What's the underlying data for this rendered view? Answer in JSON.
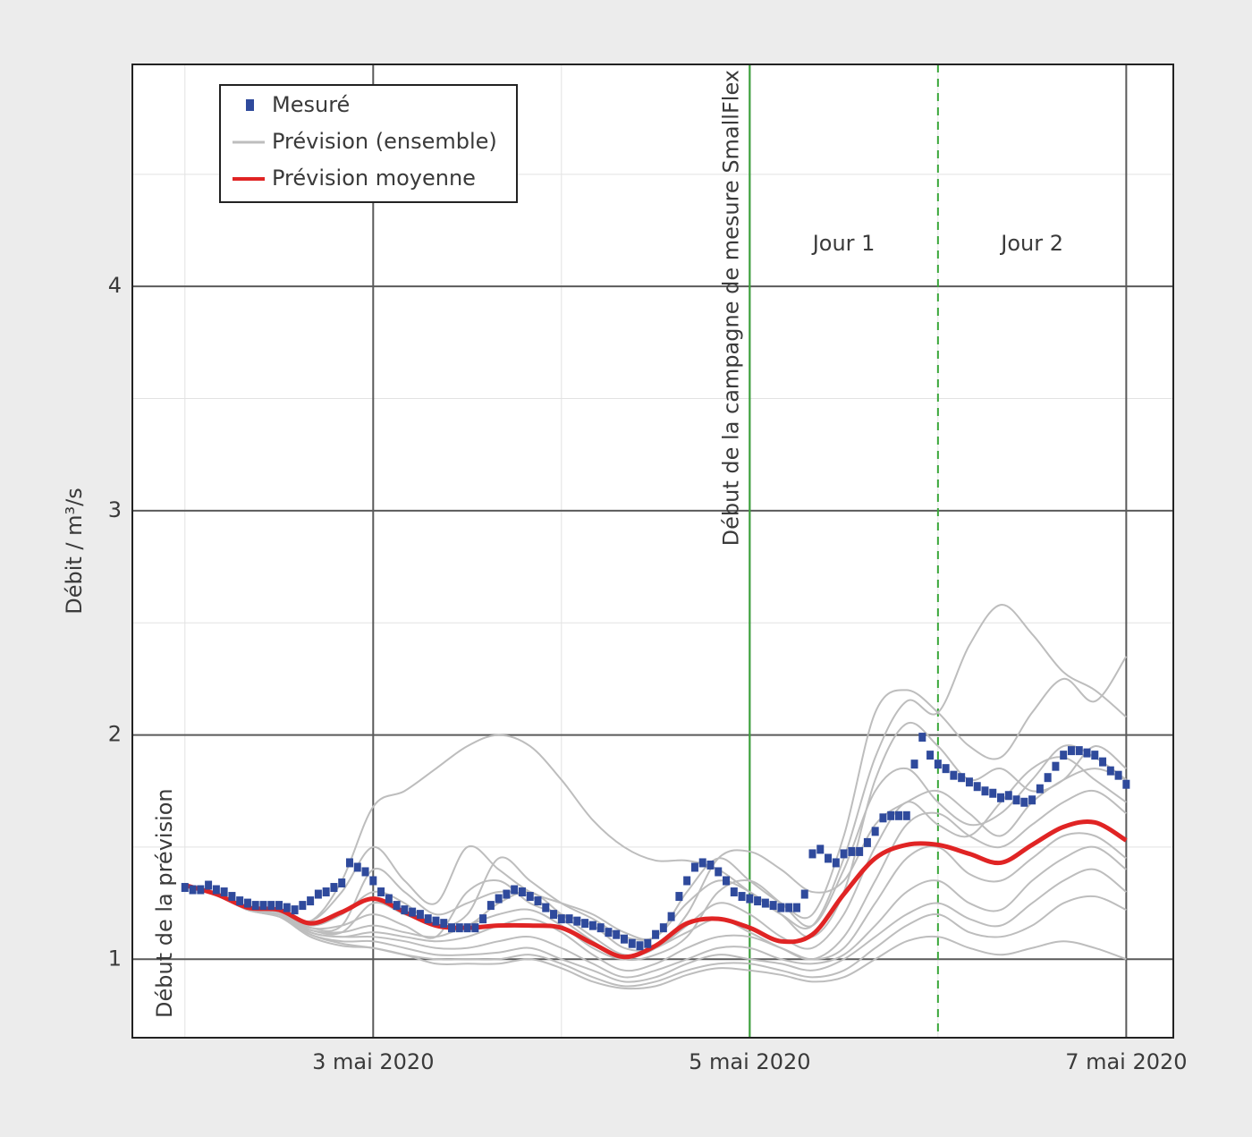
{
  "chart_data": {
    "type": "line",
    "y_label": "Débit / m³/s",
    "xlim": [
      17.3,
      150.0
    ],
    "ylim": [
      0.65,
      4.99
    ],
    "xticks": [
      {
        "value": 48,
        "label": "3 mai 2020"
      },
      {
        "value": 96,
        "label": "5 mai 2020"
      },
      {
        "value": 144,
        "label": "7 mai 2020"
      }
    ],
    "yticks": [
      1,
      2,
      3,
      4
    ],
    "minor_xticks": [
      24,
      72,
      120
    ],
    "minor_yticks": [
      1.5,
      2.5,
      3.5,
      4.5
    ],
    "grid": true,
    "legend": "upper left",
    "series": [
      {
        "name": "Mesuré",
        "color": "#2f4a9c",
        "marker": "square",
        "x": [
          24,
          25,
          26,
          27,
          28,
          29,
          30,
          31,
          32,
          33,
          34,
          35,
          36,
          37,
          38,
          39,
          40,
          41,
          42,
          43,
          44,
          45,
          46,
          47,
          48,
          49,
          50,
          51,
          52,
          53,
          54,
          55,
          56,
          57,
          58,
          59,
          60,
          61,
          62,
          63,
          64,
          65,
          66,
          67,
          68,
          69,
          70,
          71,
          72,
          73,
          74,
          75,
          76,
          77,
          78,
          79,
          80,
          81,
          82,
          83,
          84,
          85,
          86,
          87,
          88,
          89,
          90,
          91,
          92,
          93,
          94,
          95,
          96,
          97,
          98,
          99,
          100,
          101,
          102,
          103,
          104,
          105,
          106,
          107,
          108,
          109,
          110,
          111,
          112,
          113,
          114,
          115,
          116,
          117,
          118,
          119,
          120,
          121,
          122,
          123,
          124,
          125,
          126,
          127,
          128,
          129,
          130,
          131,
          132,
          133,
          134,
          135,
          136,
          137,
          138,
          139,
          140,
          141,
          142,
          143,
          144
        ],
        "values": [
          1.32,
          1.31,
          1.31,
          1.33,
          1.31,
          1.3,
          1.28,
          1.26,
          1.25,
          1.24,
          1.24,
          1.24,
          1.24,
          1.23,
          1.22,
          1.24,
          1.26,
          1.29,
          1.3,
          1.32,
          1.34,
          1.43,
          1.41,
          1.39,
          1.35,
          1.3,
          1.27,
          1.24,
          1.22,
          1.21,
          1.2,
          1.18,
          1.17,
          1.16,
          1.14,
          1.14,
          1.14,
          1.14,
          1.18,
          1.24,
          1.27,
          1.29,
          1.31,
          1.3,
          1.28,
          1.26,
          1.23,
          1.2,
          1.18,
          1.18,
          1.17,
          1.16,
          1.15,
          1.14,
          1.12,
          1.11,
          1.09,
          1.07,
          1.06,
          1.07,
          1.11,
          1.14,
          1.19,
          1.28,
          1.35,
          1.41,
          1.43,
          1.42,
          1.39,
          1.35,
          1.3,
          1.28,
          1.27,
          1.26,
          1.25,
          1.24,
          1.23,
          1.23,
          1.23,
          1.29,
          1.47,
          1.49,
          1.45,
          1.43,
          1.47,
          1.48,
          1.48,
          1.52,
          1.57,
          1.63,
          1.64,
          1.64,
          1.64,
          1.87,
          1.99,
          1.91,
          1.87,
          1.85,
          1.82,
          1.81,
          1.79,
          1.77,
          1.75,
          1.74,
          1.72,
          1.73,
          1.71,
          1.7,
          1.71,
          1.76,
          1.81,
          1.86,
          1.91,
          1.93,
          1.93,
          1.92,
          1.91,
          1.88,
          1.84,
          1.82,
          1.78
        ]
      },
      {
        "name": "Prévision (ensemble)",
        "color": "#bdbdbd",
        "x": [
          24,
          28,
          32,
          36,
          40,
          44,
          48,
          52,
          56,
          60,
          64,
          68,
          72,
          76,
          80,
          84,
          88,
          92,
          96,
          100,
          104,
          108,
          112,
          116,
          120,
          124,
          128,
          132,
          136,
          140,
          144
        ],
        "members": [
          [
            1.33,
            1.29,
            1.23,
            1.22,
            1.17,
            1.35,
            1.68,
            1.75,
            1.85,
            1.95,
            2.0,
            1.95,
            1.8,
            1.62,
            1.5,
            1.44,
            1.44,
            1.4,
            1.3,
            1.2,
            1.15,
            1.45,
            1.9,
            2.15,
            2.1,
            2.4,
            2.58,
            2.45,
            2.28,
            2.2,
            2.08
          ],
          [
            1.33,
            1.29,
            1.23,
            1.22,
            1.17,
            1.3,
            1.5,
            1.35,
            1.25,
            1.5,
            1.4,
            1.3,
            1.25,
            1.2,
            1.12,
            1.1,
            1.3,
            1.45,
            1.35,
            1.25,
            1.2,
            1.55,
            2.1,
            2.2,
            2.1,
            1.95,
            1.9,
            2.1,
            2.25,
            2.15,
            2.35
          ],
          [
            1.33,
            1.29,
            1.23,
            1.21,
            1.15,
            1.2,
            1.3,
            1.25,
            1.15,
            1.2,
            1.45,
            1.35,
            1.25,
            1.18,
            1.1,
            1.1,
            1.25,
            1.35,
            1.3,
            1.2,
            1.1,
            1.3,
            1.8,
            2.05,
            1.95,
            1.8,
            1.85,
            1.75,
            1.8,
            1.95,
            1.85
          ],
          [
            1.33,
            1.29,
            1.23,
            1.21,
            1.14,
            1.15,
            1.2,
            1.15,
            1.1,
            1.3,
            1.35,
            1.25,
            1.2,
            1.15,
            1.05,
            1.05,
            1.15,
            1.25,
            1.2,
            1.1,
            1.05,
            1.2,
            1.5,
            1.7,
            1.6,
            1.55,
            1.7,
            1.85,
            1.9,
            1.8,
            1.7
          ],
          [
            1.33,
            1.29,
            1.22,
            1.2,
            1.13,
            1.12,
            1.15,
            1.12,
            1.1,
            1.15,
            1.2,
            1.22,
            1.15,
            1.05,
            1.0,
            1.05,
            1.12,
            1.18,
            1.12,
            1.05,
            1.0,
            1.1,
            1.35,
            1.6,
            1.65,
            1.55,
            1.5,
            1.6,
            1.7,
            1.75,
            1.65
          ],
          [
            1.33,
            1.29,
            1.22,
            1.2,
            1.12,
            1.1,
            1.12,
            1.1,
            1.08,
            1.1,
            1.15,
            1.18,
            1.12,
            1.02,
            0.95,
            0.98,
            1.05,
            1.1,
            1.1,
            1.05,
            1.0,
            1.05,
            1.25,
            1.45,
            1.5,
            1.38,
            1.35,
            1.45,
            1.55,
            1.55,
            1.45
          ],
          [
            1.33,
            1.29,
            1.22,
            1.2,
            1.12,
            1.1,
            1.1,
            1.08,
            1.05,
            1.05,
            1.08,
            1.1,
            1.05,
            0.98,
            0.92,
            0.95,
            1.0,
            1.05,
            1.05,
            1.0,
            0.98,
            1.02,
            1.15,
            1.3,
            1.35,
            1.25,
            1.22,
            1.35,
            1.45,
            1.5,
            1.4
          ],
          [
            1.33,
            1.29,
            1.22,
            1.19,
            1.11,
            1.08,
            1.08,
            1.05,
            1.02,
            1.02,
            1.03,
            1.05,
            1.0,
            0.95,
            0.9,
            0.92,
            0.98,
            1.02,
            1.0,
            0.98,
            0.95,
            1.0,
            1.1,
            1.2,
            1.25,
            1.18,
            1.15,
            1.25,
            1.35,
            1.4,
            1.3
          ],
          [
            1.33,
            1.29,
            1.22,
            1.19,
            1.11,
            1.07,
            1.05,
            1.02,
            1.0,
            1.0,
            1.0,
            1.02,
            0.98,
            0.92,
            0.88,
            0.9,
            0.95,
            0.98,
            0.98,
            0.95,
            0.92,
            0.95,
            1.05,
            1.15,
            1.2,
            1.12,
            1.1,
            1.15,
            1.25,
            1.28,
            1.22
          ],
          [
            1.33,
            1.29,
            1.22,
            1.19,
            1.1,
            1.06,
            1.05,
            1.02,
            0.98,
            0.98,
            0.98,
            1.0,
            0.96,
            0.9,
            0.87,
            0.88,
            0.93,
            0.96,
            0.95,
            0.93,
            0.9,
            0.92,
            1.0,
            1.08,
            1.1,
            1.05,
            1.02,
            1.05,
            1.08,
            1.05,
            1.0
          ],
          [
            1.33,
            1.29,
            1.22,
            1.19,
            1.13,
            1.12,
            1.25,
            1.2,
            1.15,
            1.15,
            1.25,
            1.3,
            1.2,
            1.1,
            1.02,
            1.05,
            1.2,
            1.45,
            1.48,
            1.4,
            1.3,
            1.35,
            1.6,
            1.7,
            1.75,
            1.65,
            1.55,
            1.7,
            1.8,
            1.85,
            1.8
          ],
          [
            1.33,
            1.29,
            1.22,
            1.2,
            1.14,
            1.15,
            1.4,
            1.3,
            1.2,
            1.25,
            1.3,
            1.28,
            1.18,
            1.08,
            1.0,
            1.02,
            1.1,
            1.3,
            1.35,
            1.25,
            1.15,
            1.4,
            1.75,
            1.85,
            1.7,
            1.6,
            1.65,
            1.8,
            1.95,
            1.9,
            1.8
          ]
        ]
      },
      {
        "name": "Prévision moyenne",
        "color": "#e02424",
        "x": [
          24,
          28,
          32,
          36,
          40,
          44,
          48,
          52,
          56,
          60,
          64,
          68,
          72,
          76,
          80,
          84,
          88,
          92,
          96,
          100,
          104,
          108,
          112,
          116,
          120,
          124,
          128,
          132,
          136,
          140,
          144
        ],
        "values": [
          1.33,
          1.29,
          1.23,
          1.22,
          1.16,
          1.21,
          1.27,
          1.21,
          1.15,
          1.14,
          1.15,
          1.15,
          1.14,
          1.07,
          1.01,
          1.06,
          1.16,
          1.18,
          1.14,
          1.08,
          1.11,
          1.29,
          1.45,
          1.51,
          1.51,
          1.47,
          1.43,
          1.51,
          1.59,
          1.61,
          1.53
        ]
      }
    ],
    "vlines": [
      {
        "x": 96,
        "color": "#3aa63a",
        "dash": false
      },
      {
        "x": 120,
        "color": "#3aa63a",
        "dash": true
      }
    ],
    "forecast_start_label": "Début de la prévision",
    "campaign_label": "Début de la campagne de mesure SmallFlex",
    "day_labels": [
      "Jour 1",
      "Jour 2"
    ]
  }
}
